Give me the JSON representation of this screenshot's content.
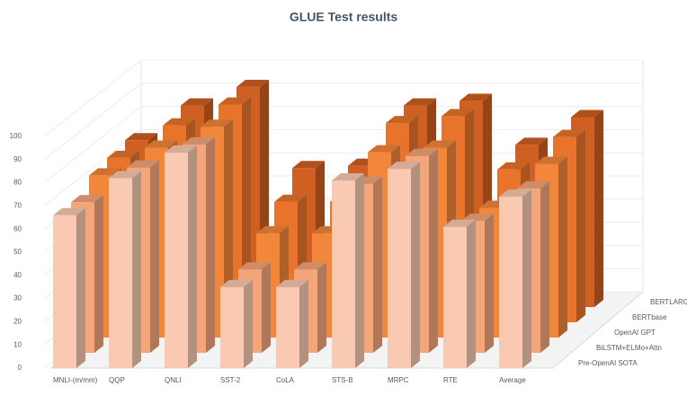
{
  "chart_data": {
    "type": "bar3d",
    "title": "GLUE Test results",
    "categories": [
      "MNLI-(m/mm)",
      "QQP",
      "QNLI",
      "SST-2",
      "CoLA",
      "STS-B",
      "MRPC",
      "RTE",
      "Average"
    ],
    "series": [
      {
        "name": "Pre-OpenAI SOTA",
        "color": "#f9c9b1",
        "values": [
          66,
          82,
          93,
          35,
          35,
          81,
          86,
          61,
          74
        ]
      },
      {
        "name": "BiLSTM+ELMo+Attn",
        "color": "#f4a57a",
        "values": [
          65,
          80,
          90,
          36,
          36,
          73,
          85,
          57,
          71
        ]
      },
      {
        "name": "OpenAI GPT",
        "color": "#f2863a",
        "values": [
          70,
          82,
          91,
          45,
          45,
          80,
          82,
          56,
          75
        ]
      },
      {
        "name": "BERTbase",
        "color": "#e8742c",
        "values": [
          71,
          85,
          94,
          52,
          52,
          86,
          89,
          66,
          80
        ]
      },
      {
        "name": "BERTLARGE",
        "color": "#cf5f22",
        "values": [
          72,
          87,
          95,
          60,
          61,
          87,
          89,
          70,
          82
        ]
      }
    ],
    "ylim": [
      0,
      100
    ],
    "yticks": [
      0,
      10,
      20,
      30,
      40,
      50,
      60,
      70,
      80,
      90,
      100
    ]
  }
}
